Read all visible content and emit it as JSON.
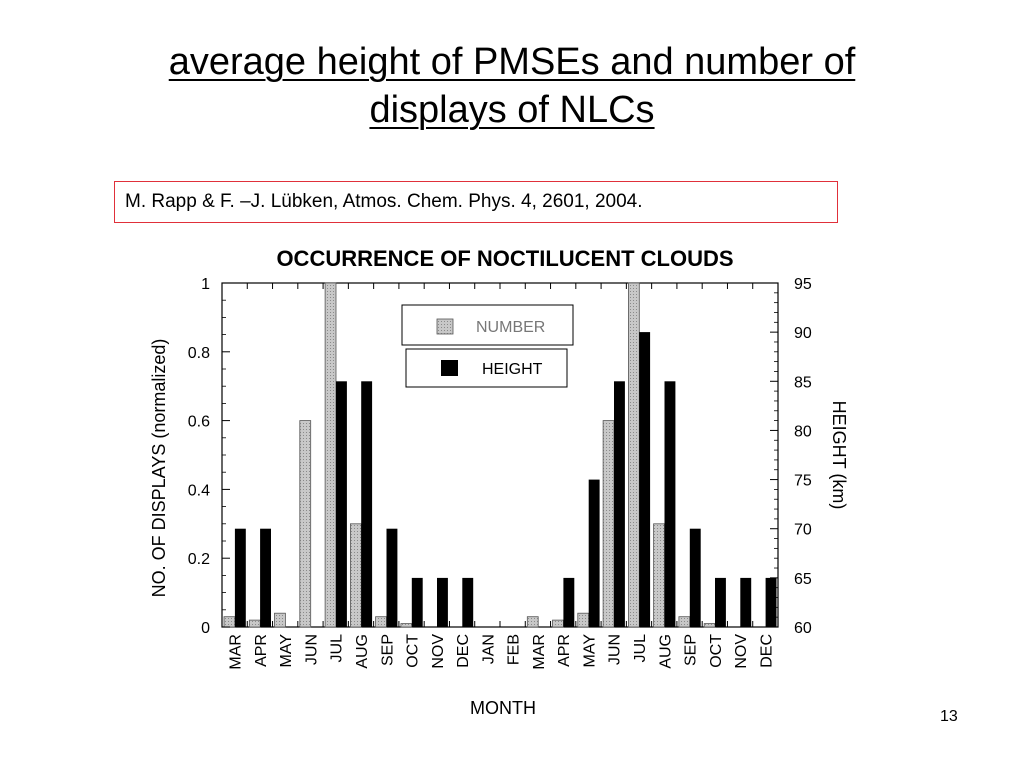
{
  "slide": {
    "title_line1": "average height of PMSEs and number of",
    "title_line2": "displays of NLCs",
    "citation": "M. Rapp & F. –J. Lübken, Atmos. Chem. Phys. 4, 2601, 2004.",
    "page_number": "13"
  },
  "colors": {
    "number_bar": "#c8c8c8",
    "height_bar": "#000000",
    "citation_border": "#e0303a"
  },
  "chart_data": {
    "type": "bar",
    "title": "OCCURRENCE OF NOCTILUCENT CLOUDS",
    "xlabel": "MONTH",
    "ylabel": "NO. OF DISPLAYS (normalized)",
    "y2label": "HEIGHT (km)",
    "ylim": [
      0,
      1
    ],
    "y2lim": [
      60,
      95
    ],
    "yticks": [
      "0",
      "0.2",
      "0.4",
      "0.6",
      "0.8",
      "1"
    ],
    "y2ticks": [
      "60",
      "65",
      "70",
      "75",
      "80",
      "85",
      "90",
      "95"
    ],
    "categories": [
      "MAR",
      "APR",
      "MAY",
      "JUN",
      "JUL",
      "AUG",
      "SEP",
      "OCT",
      "NOV",
      "DEC",
      "JAN",
      "FEB",
      "MAR",
      "APR",
      "MAY",
      "JUN",
      "JUL",
      "AUG",
      "SEP",
      "OCT",
      "NOV",
      "DEC"
    ],
    "legend": [
      "NUMBER",
      "HEIGHT"
    ],
    "legend_position": "top-center",
    "grid": false,
    "series": [
      {
        "name": "NUMBER",
        "axis": "left",
        "values": [
          0.03,
          0.02,
          0.04,
          0.6,
          1.0,
          0.3,
          0.03,
          0.01,
          0,
          0,
          0,
          0,
          0.03,
          0.02,
          0.04,
          0.6,
          1.0,
          0.3,
          0.03,
          0.01,
          0,
          0
        ]
      },
      {
        "name": "HEIGHT",
        "axis": "right",
        "values": [
          70,
          70,
          null,
          null,
          85,
          85,
          70,
          65,
          65,
          65,
          null,
          null,
          null,
          65,
          75,
          85,
          90,
          85,
          70,
          65,
          65,
          65
        ]
      }
    ]
  }
}
